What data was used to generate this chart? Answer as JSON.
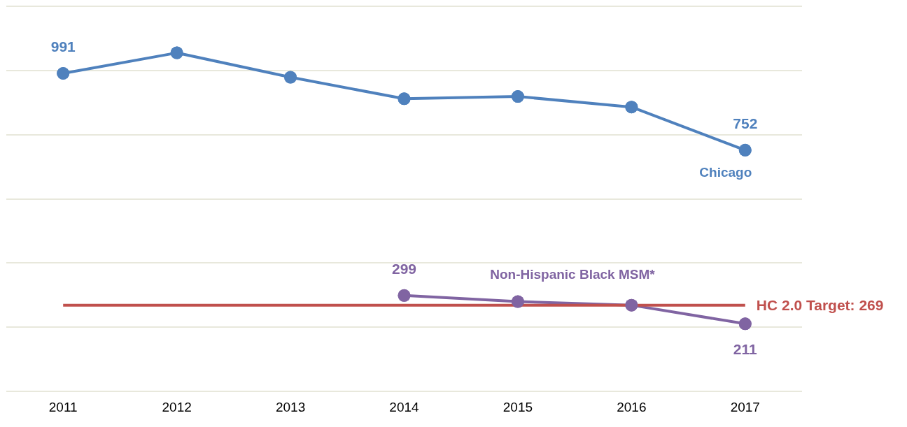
{
  "chart_data": {
    "type": "line",
    "categories": [
      "2011",
      "2012",
      "2013",
      "2014",
      "2015",
      "2016",
      "2017"
    ],
    "series": [
      {
        "name": "Chicago",
        "color": "#4f81bd",
        "values": [
          991,
          1055,
          979,
          912,
          919,
          886,
          752
        ],
        "value_labels": [
          "991",
          null,
          null,
          null,
          null,
          null,
          "752"
        ]
      },
      {
        "name": "Non-Hispanic Black MSM*",
        "color": "#8064a2",
        "values": [
          null,
          null,
          null,
          299,
          280,
          269,
          211
        ],
        "value_labels": [
          null,
          null,
          null,
          "299",
          null,
          null,
          "211"
        ]
      }
    ],
    "ylim": [
      0,
      1200
    ],
    "yticks": [
      {
        "value": 0,
        "label": null
      },
      {
        "value": 200,
        "label": null
      },
      {
        "value": 400,
        "label": null
      },
      {
        "value": 600,
        "label": null
      },
      {
        "value": 800,
        "label": null
      },
      {
        "value": 1000,
        "label": null
      },
      {
        "value": 1200,
        "label": null
      }
    ],
    "tick_labels": "x",
    "grid": "y",
    "legend": false,
    "marker": "circle",
    "line_style": "solid",
    "ref_lines": [
      {
        "axis": "y",
        "value": 269,
        "label": "HC 2.0 Target: 269",
        "color": "#c0504d"
      }
    ]
  }
}
